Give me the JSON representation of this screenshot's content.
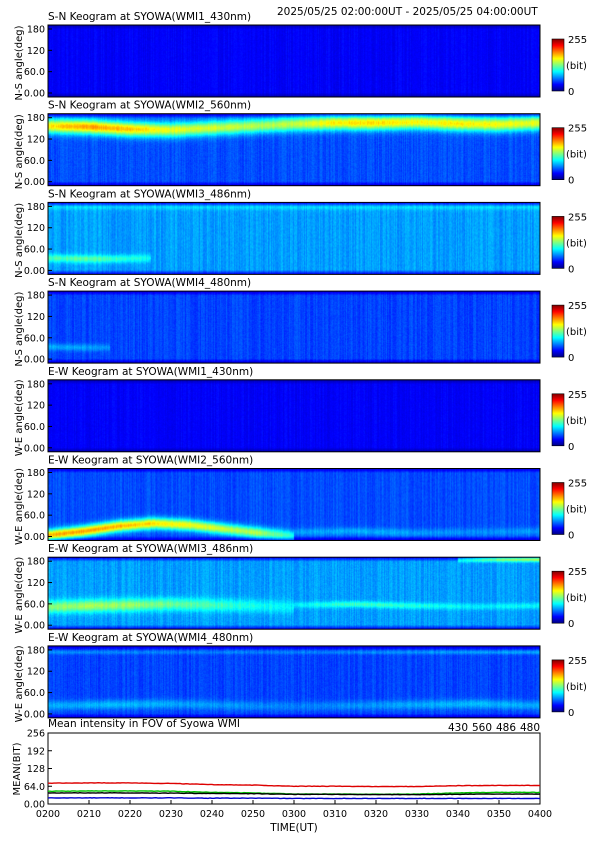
{
  "header": {
    "time_range": "2025/05/25 02:00:00UT - 2025/05/25 04:00:00UT"
  },
  "colorbar": {
    "max_label": "255",
    "unit_label": "(bit)",
    "min_label": "0"
  },
  "panels": [
    {
      "title": "S-N Keogram at SYOWA(WMI1_430nm)",
      "ylabel": "N-S angle(deg)",
      "yticks": [
        "180",
        "120",
        "60.0",
        "0.00"
      ],
      "bg_level": 0.12,
      "noise": 0.02,
      "bands": []
    },
    {
      "title": "S-N Keogram at SYOWA(WMI2_560nm)",
      "ylabel": "N-S angle(deg)",
      "yticks": [
        "180",
        "120",
        "60.0",
        "0.00"
      ],
      "bg_level": 0.2,
      "noise": 0.03,
      "bands": [
        {
          "start": "0200",
          "end": "0400",
          "center_deg": [
            150,
            148,
            142,
            140,
            145,
            150,
            155,
            158,
            158,
            160,
            156,
            154,
            158
          ],
          "width_deg": 18,
          "peak": [
            0.45,
            0.52,
            0.48,
            0.4,
            0.38,
            0.35,
            0.36,
            0.44,
            0.46,
            0.42,
            0.44,
            0.42,
            0.4
          ]
        }
      ]
    },
    {
      "title": "S-N Keogram at SYOWA(WMI3_486nm)",
      "ylabel": "N-S angle(deg)",
      "yticks": [
        "180",
        "120",
        "60.0",
        "0.00"
      ],
      "bg_level": 0.28,
      "noise": 0.035,
      "bands": [
        {
          "start": "0200",
          "end": "0225",
          "center_deg": [
            40,
            38,
            38,
            40
          ],
          "width_deg": 10,
          "peak": [
            0.16,
            0.18,
            0.16,
            0.1
          ]
        },
        {
          "start": "0200",
          "end": "0400",
          "center_deg": [
            170,
            170,
            170,
            170,
            170
          ],
          "width_deg": 8,
          "peak": [
            0.06,
            0.06,
            0.06,
            0.06,
            0.06
          ]
        }
      ]
    },
    {
      "title": "S-N Keogram at SYOWA(WMI4_480nm)",
      "ylabel": "N-S angle(deg)",
      "yticks": [
        "180",
        "120",
        "60.0",
        "0.00"
      ],
      "bg_level": 0.19,
      "noise": 0.03,
      "bands": [
        {
          "start": "0200",
          "end": "0215",
          "center_deg": [
            40,
            38,
            38
          ],
          "width_deg": 9,
          "peak": [
            0.1,
            0.1,
            0.07
          ]
        }
      ]
    },
    {
      "title": "E-W Keogram at SYOWA(WMI1_430nm)",
      "ylabel": "W-E angle(deg)",
      "yticks": [
        "180",
        "120",
        "60.0",
        "0.00"
      ],
      "bg_level": 0.12,
      "noise": 0.02,
      "bands": []
    },
    {
      "title": "E-W Keogram at SYOWA(WMI2_560nm)",
      "ylabel": "W-E angle(deg)",
      "yticks": [
        "180",
        "120",
        "60.0",
        "0.00"
      ],
      "bg_level": 0.2,
      "noise": 0.03,
      "bands": [
        {
          "start": "0200",
          "end": "0300",
          "center_deg": [
            12,
            22,
            35,
            42,
            38,
            28,
            18,
            10
          ],
          "width_deg": 14,
          "peak": [
            0.5,
            0.52,
            0.5,
            0.46,
            0.42,
            0.38,
            0.34,
            0.2
          ]
        },
        {
          "start": "0300",
          "end": "0400",
          "center_deg": [
            20,
            22,
            18,
            20,
            22
          ],
          "width_deg": 10,
          "peak": [
            0.08,
            0.1,
            0.08,
            0.06,
            0.08
          ]
        }
      ]
    },
    {
      "title": "E-W Keogram at SYOWA(WMI3_486nm)",
      "ylabel": "W-E angle(deg)",
      "yticks": [
        "180",
        "120",
        "60.0",
        "0.00"
      ],
      "bg_level": 0.28,
      "noise": 0.035,
      "bands": [
        {
          "start": "0200",
          "end": "0300",
          "center_deg": [
            55,
            58,
            60,
            62,
            60,
            58,
            55
          ],
          "width_deg": 16,
          "peak": [
            0.22,
            0.26,
            0.24,
            0.2,
            0.16,
            0.12,
            0.08
          ]
        },
        {
          "start": "0300",
          "end": "0400",
          "center_deg": [
            60,
            62,
            58,
            56,
            58
          ],
          "width_deg": 8,
          "peak": [
            0.08,
            0.16,
            0.12,
            0.08,
            0.1
          ]
        },
        {
          "start": "0340",
          "end": "0400",
          "center_deg": [
            175,
            176,
            176
          ],
          "width_deg": 6,
          "peak": [
            0.15,
            0.3,
            0.35
          ]
        }
      ]
    },
    {
      "title": "E-W Keogram at SYOWA(WMI4_480nm)",
      "ylabel": "W-E angle(deg)",
      "yticks": [
        "180",
        "120",
        "60.0",
        "0.00"
      ],
      "bg_level": 0.19,
      "noise": 0.03,
      "bands": [
        {
          "start": "0200",
          "end": "0400",
          "center_deg": [
            30,
            32,
            34,
            30,
            28,
            30,
            32,
            34,
            30
          ],
          "width_deg": 12,
          "peak": [
            0.1,
            0.12,
            0.1,
            0.08,
            0.06,
            0.08,
            0.1,
            0.12,
            0.1
          ]
        },
        {
          "start": "0200",
          "end": "0400",
          "center_deg": [
            165,
            165,
            165,
            165,
            165
          ],
          "width_deg": 5,
          "peak": [
            0.08,
            0.06,
            0.06,
            0.08,
            0.1
          ]
        }
      ]
    }
  ],
  "mean_panel": {
    "title": "Mean intensity in FOV of Syowa WMI",
    "ylabel": "MEAN(BIT)",
    "yticks": [
      "256",
      "192",
      "128",
      "64.0",
      "0.00"
    ],
    "legend": [
      {
        "label": "430",
        "color": "#0000cc"
      },
      {
        "label": "560",
        "color": "#00c000"
      },
      {
        "label": "486",
        "color": "#dd0000"
      },
      {
        "label": "480",
        "color": "#000000"
      }
    ]
  },
  "chart_data": {
    "type": "line",
    "title": "Mean intensity in FOV of Syowa WMI",
    "xlabel": "TIME(UT)",
    "ylabel": "MEAN(BIT)",
    "ylim": [
      0,
      256
    ],
    "x_ticks": [
      "0200",
      "0210",
      "0220",
      "0230",
      "0240",
      "0250",
      "0300",
      "0310",
      "0320",
      "0330",
      "0340",
      "0350",
      "0400"
    ],
    "x": [
      "0200",
      "0210",
      "0220",
      "0230",
      "0240",
      "0250",
      "0300",
      "0310",
      "0320",
      "0330",
      "0340",
      "0350",
      "0400"
    ],
    "series": [
      {
        "name": "430",
        "color": "#0000cc",
        "values": [
          22,
          22,
          22,
          22,
          21,
          21,
          20,
          20,
          20,
          20,
          20,
          20,
          20
        ]
      },
      {
        "name": "560",
        "color": "#00c000",
        "values": [
          46,
          47,
          47,
          46,
          42,
          40,
          36,
          36,
          35,
          36,
          40,
          42,
          42
        ]
      },
      {
        "name": "486",
        "color": "#dd0000",
        "values": [
          75,
          76,
          76,
          74,
          70,
          68,
          64,
          64,
          63,
          63,
          66,
          67,
          67
        ]
      },
      {
        "name": "480",
        "color": "#000000",
        "values": [
          40,
          40,
          40,
          39,
          38,
          37,
          35,
          35,
          34,
          34,
          35,
          36,
          36
        ]
      }
    ],
    "grid": false,
    "legend": "top-right"
  }
}
